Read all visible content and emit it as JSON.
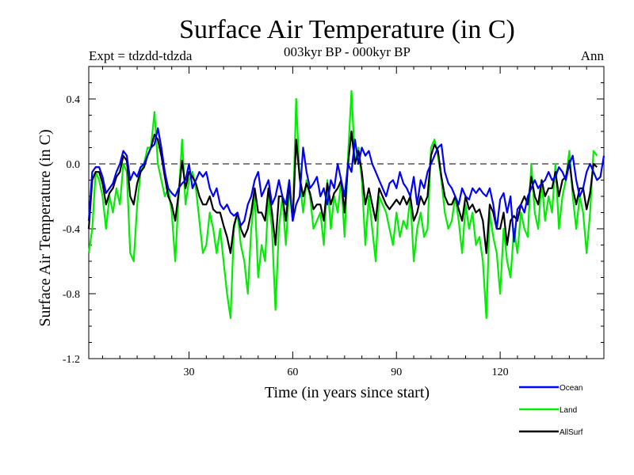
{
  "chart_data": {
    "type": "line",
    "title": "Surface Air Temperature (in C)",
    "experiment_label": "Expt = tdzdd-tdzda",
    "period_label": "003kyr BP - 000kyr BP",
    "season_label": "Ann",
    "xlabel": "Time (in years since start)",
    "ylabel": "Surface Air Temperature (in C)",
    "xlim": [
      1,
      150
    ],
    "ylim": [
      -1.2,
      0.6
    ],
    "x_ticks": [
      30,
      60,
      90,
      120
    ],
    "y_ticks": [
      -1.2,
      -0.8,
      -0.4,
      0.0,
      0.4
    ],
    "y_tick_labels": [
      "-1.2",
      "-0.8",
      "-0.4",
      "0.0",
      "0.4"
    ],
    "reference_line": 0.0,
    "x_start": 1,
    "series": [
      {
        "name": "Ocean",
        "color": "#0000ff",
        "values": [
          -0.35,
          -0.05,
          -0.02,
          -0.02,
          -0.08,
          -0.18,
          -0.15,
          -0.12,
          -0.05,
          0.0,
          0.08,
          0.05,
          -0.1,
          -0.05,
          -0.08,
          -0.02,
          0.0,
          0.05,
          0.1,
          0.12,
          0.22,
          0.1,
          -0.05,
          -0.15,
          -0.18,
          -0.2,
          -0.15,
          -0.12,
          -0.1,
          0.0,
          -0.15,
          -0.1,
          -0.05,
          -0.08,
          -0.05,
          -0.15,
          -0.2,
          -0.15,
          -0.25,
          -0.28,
          -0.25,
          -0.3,
          -0.32,
          -0.3,
          -0.38,
          -0.35,
          -0.25,
          -0.2,
          -0.1,
          -0.05,
          -0.2,
          -0.15,
          -0.1,
          -0.25,
          -0.2,
          -0.1,
          -0.2,
          -0.25,
          -0.1,
          -0.35,
          -0.25,
          -0.2,
          0.1,
          -0.05,
          -0.15,
          -0.12,
          -0.08,
          -0.2,
          -0.15,
          -0.25,
          -0.1,
          -0.15,
          0.0,
          -0.1,
          -0.2,
          0.0,
          -0.05,
          0.15,
          0.0,
          0.1,
          0.05,
          0.08,
          0.0,
          -0.05,
          -0.1,
          -0.15,
          -0.2,
          -0.12,
          -0.1,
          -0.15,
          -0.05,
          -0.12,
          -0.15,
          -0.2,
          -0.08,
          -0.25,
          -0.1,
          -0.15,
          -0.05,
          0.0,
          0.05,
          0.1,
          0.12,
          -0.05,
          -0.12,
          -0.15,
          -0.2,
          -0.25,
          -0.15,
          -0.2,
          -0.22,
          -0.15,
          -0.18,
          -0.15,
          -0.18,
          -0.2,
          -0.15,
          -0.25,
          -0.4,
          -0.22,
          -0.18,
          -0.3,
          -0.2,
          -0.48,
          -0.28,
          -0.25,
          -0.3,
          -0.2,
          -0.15,
          -0.1,
          -0.15,
          -0.12,
          -0.1,
          -0.05,
          -0.1,
          -0.08,
          -0.02,
          -0.05,
          -0.1,
          0.0,
          0.05,
          -0.1,
          -0.2,
          -0.15,
          -0.05,
          0.0,
          -0.05,
          -0.1,
          -0.08,
          0.05
        ]
      },
      {
        "name": "Land",
        "color": "#00ee00",
        "values": [
          -0.55,
          -0.4,
          -0.05,
          -0.1,
          -0.2,
          -0.4,
          -0.2,
          -0.3,
          -0.15,
          -0.25,
          0.0,
          -0.05,
          -0.55,
          -0.6,
          -0.25,
          -0.05,
          0.0,
          0.1,
          0.1,
          0.32,
          0.0,
          -0.1,
          -0.2,
          -0.15,
          -0.3,
          -0.6,
          -0.2,
          0.15,
          -0.25,
          -0.1,
          -0.05,
          -0.15,
          -0.35,
          -0.55,
          -0.5,
          -0.3,
          -0.4,
          -0.55,
          -0.4,
          -0.6,
          -0.8,
          -0.95,
          -0.4,
          -0.3,
          -0.5,
          -0.6,
          -0.8,
          -0.4,
          -0.2,
          -0.7,
          -0.5,
          -0.6,
          -0.2,
          -0.4,
          -0.9,
          -0.4,
          -0.2,
          -0.5,
          -0.15,
          -0.35,
          0.4,
          -0.1,
          -0.3,
          -0.1,
          -0.2,
          -0.4,
          -0.35,
          -0.3,
          -0.5,
          -0.1,
          -0.4,
          -0.2,
          -0.3,
          -0.1,
          -0.45,
          0.05,
          0.45,
          0.0,
          0.1,
          -0.1,
          -0.5,
          -0.2,
          -0.4,
          -0.6,
          -0.2,
          -0.25,
          -0.3,
          -0.4,
          -0.5,
          -0.3,
          -0.45,
          -0.35,
          -0.4,
          -0.2,
          -0.6,
          -0.4,
          -0.3,
          -0.45,
          -0.4,
          0.1,
          0.15,
          0.05,
          -0.1,
          -0.3,
          -0.4,
          -0.35,
          -0.2,
          -0.35,
          -0.55,
          -0.25,
          -0.4,
          -0.3,
          -0.5,
          -0.45,
          -0.6,
          -0.95,
          -0.3,
          -0.45,
          -0.55,
          -0.8,
          -0.4,
          -0.6,
          -0.7,
          -0.4,
          -0.55,
          -0.3,
          -0.4,
          -0.45,
          0.0,
          -0.3,
          -0.4,
          -0.1,
          -0.35,
          -0.2,
          -0.3,
          0.0,
          -0.4,
          -0.2,
          -0.1,
          0.08,
          -0.2,
          -0.4,
          -0.2,
          -0.3,
          -0.55,
          -0.3,
          0.08,
          0.05
        ]
      },
      {
        "name": "AllSurf",
        "color": "#000000",
        "values": [
          -0.4,
          -0.1,
          -0.05,
          -0.05,
          -0.12,
          -0.25,
          -0.18,
          -0.15,
          -0.08,
          -0.05,
          0.05,
          0.02,
          -0.2,
          -0.25,
          -0.12,
          -0.05,
          -0.02,
          0.05,
          0.1,
          0.18,
          0.15,
          0.05,
          -0.08,
          -0.2,
          -0.25,
          -0.35,
          -0.18,
          0.02,
          -0.15,
          -0.05,
          -0.08,
          -0.12,
          -0.2,
          -0.25,
          -0.25,
          -0.2,
          -0.28,
          -0.3,
          -0.3,
          -0.38,
          -0.45,
          -0.55,
          -0.38,
          -0.3,
          -0.4,
          -0.45,
          -0.4,
          -0.3,
          -0.15,
          -0.3,
          -0.3,
          -0.35,
          -0.15,
          -0.3,
          -0.5,
          -0.2,
          -0.2,
          -0.35,
          -0.12,
          -0.35,
          0.15,
          -0.08,
          -0.2,
          -0.12,
          -0.18,
          -0.28,
          -0.25,
          -0.25,
          -0.35,
          -0.12,
          -0.25,
          -0.18,
          -0.15,
          -0.1,
          -0.3,
          0.0,
          0.2,
          0.0,
          0.08,
          -0.05,
          -0.25,
          -0.15,
          -0.25,
          -0.35,
          -0.15,
          -0.2,
          -0.25,
          -0.28,
          -0.25,
          -0.22,
          -0.25,
          -0.2,
          -0.25,
          -0.2,
          -0.35,
          -0.3,
          -0.2,
          -0.25,
          -0.2,
          0.05,
          0.12,
          0.08,
          -0.08,
          -0.2,
          -0.25,
          -0.25,
          -0.2,
          -0.28,
          -0.35,
          -0.2,
          -0.28,
          -0.25,
          -0.3,
          -0.28,
          -0.35,
          -0.55,
          -0.25,
          -0.3,
          -0.4,
          -0.4,
          -0.3,
          -0.5,
          -0.35,
          -0.32,
          -0.35,
          -0.25,
          -0.2,
          -0.25,
          -0.08,
          -0.2,
          -0.25,
          -0.1,
          -0.2,
          -0.15,
          -0.15,
          -0.05,
          -0.2,
          -0.1,
          -0.08,
          0.02,
          -0.15,
          -0.25,
          -0.15,
          -0.15,
          -0.28,
          -0.18,
          0.0,
          -0.02
        ]
      }
    ],
    "legend": [
      {
        "label": "Ocean",
        "color": "#0000ff"
      },
      {
        "label": "Land",
        "color": "#00ee00"
      },
      {
        "label": "AllSurf",
        "color": "#000000"
      }
    ]
  }
}
